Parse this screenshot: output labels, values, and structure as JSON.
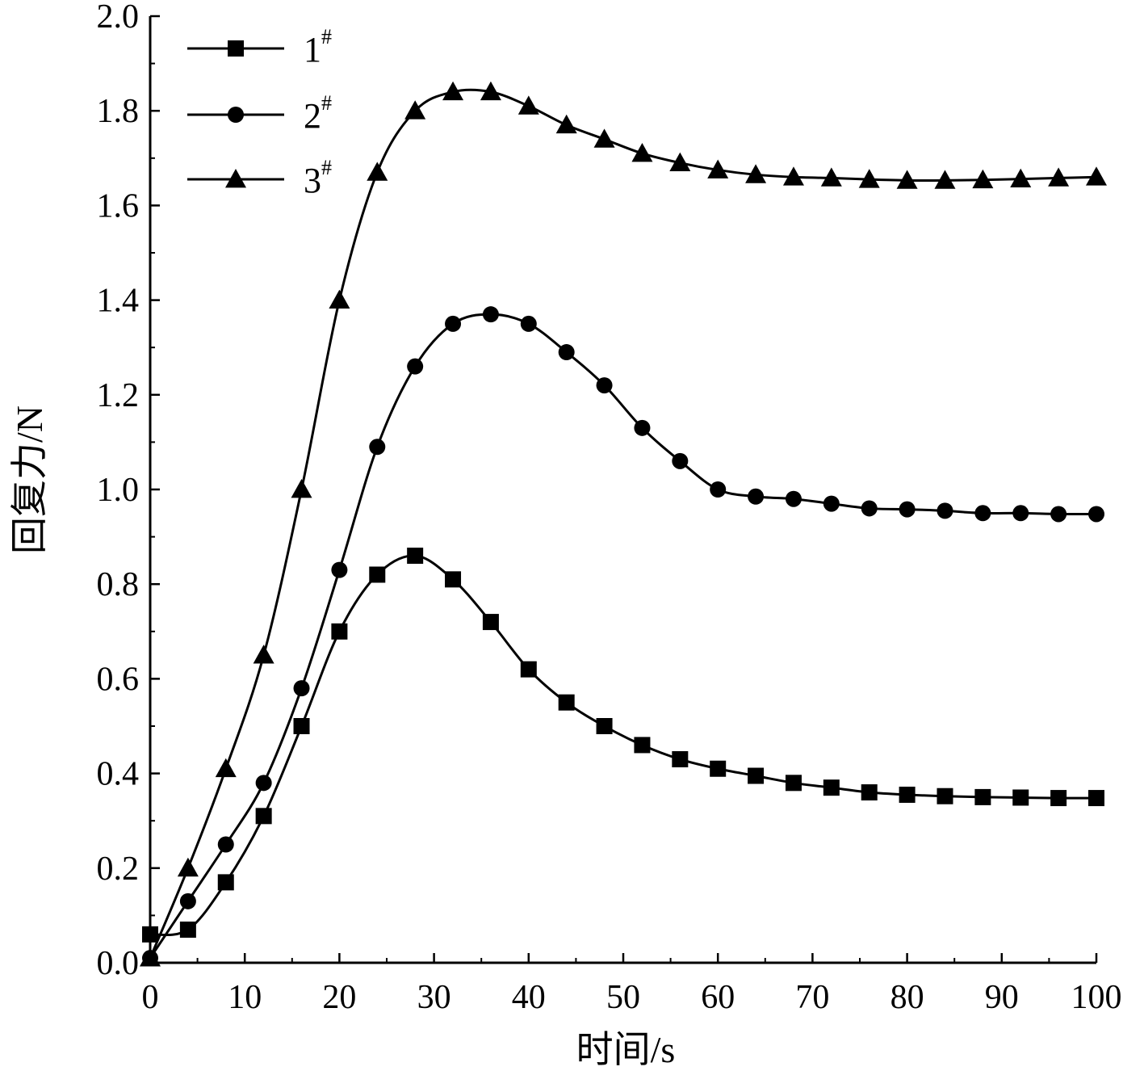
{
  "chart_data": {
    "type": "line",
    "xlabel": "时间/s",
    "ylabel": "回复力/N",
    "xlim": [
      0,
      100
    ],
    "ylim": [
      0,
      2.0
    ],
    "x_ticks": [
      "0",
      "10",
      "20",
      "30",
      "40",
      "50",
      "60",
      "70",
      "80",
      "90",
      "100"
    ],
    "y_ticks": [
      "0.0",
      "0.2",
      "0.4",
      "0.6",
      "0.8",
      "1.0",
      "1.2",
      "1.4",
      "1.6",
      "1.8",
      "2.0"
    ],
    "grid": false,
    "legend_position": "top-left",
    "color": "#000000",
    "x": [
      0,
      4,
      8,
      12,
      16,
      20,
      24,
      28,
      32,
      36,
      40,
      44,
      48,
      52,
      56,
      60,
      64,
      68,
      72,
      76,
      80,
      84,
      88,
      92,
      96,
      100
    ],
    "series": [
      {
        "name": "1",
        "superscript": "#",
        "marker": "square",
        "values": [
          0.06,
          0.07,
          0.17,
          0.31,
          0.5,
          0.7,
          0.82,
          0.86,
          0.81,
          0.72,
          0.62,
          0.55,
          0.5,
          0.46,
          0.43,
          0.41,
          0.395,
          0.38,
          0.37,
          0.36,
          0.355,
          0.352,
          0.35,
          0.349,
          0.348,
          0.348
        ]
      },
      {
        "name": "2",
        "superscript": "#",
        "marker": "circle",
        "values": [
          0.01,
          0.13,
          0.25,
          0.38,
          0.58,
          0.83,
          1.09,
          1.26,
          1.35,
          1.37,
          1.35,
          1.29,
          1.22,
          1.13,
          1.06,
          1.0,
          0.985,
          0.98,
          0.97,
          0.96,
          0.958,
          0.955,
          0.95,
          0.95,
          0.948,
          0.948
        ]
      },
      {
        "name": "3",
        "superscript": "#",
        "marker": "triangle",
        "values": [
          0.01,
          0.2,
          0.41,
          0.65,
          1.0,
          1.4,
          1.67,
          1.8,
          1.84,
          1.84,
          1.81,
          1.77,
          1.74,
          1.71,
          1.69,
          1.675,
          1.665,
          1.66,
          1.658,
          1.655,
          1.653,
          1.653,
          1.654,
          1.656,
          1.658,
          1.66
        ]
      }
    ]
  }
}
